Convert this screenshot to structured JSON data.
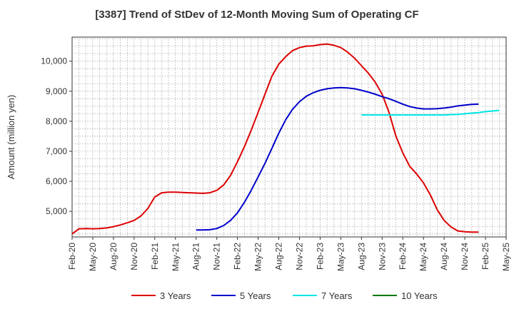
{
  "chart_data": {
    "type": "line",
    "title": "[3387]  Trend of StDev of 12-Month Moving Sum of Operating CF",
    "xlabel": "",
    "ylabel": "Amount (million yen)",
    "x_tick_labels": [
      "Feb-20",
      "May-20",
      "Aug-20",
      "Nov-20",
      "Feb-21",
      "May-21",
      "Aug-21",
      "Nov-21",
      "Feb-22",
      "May-22",
      "Aug-22",
      "Nov-22",
      "Feb-23",
      "May-23",
      "Aug-23",
      "Nov-23",
      "Feb-24",
      "May-24",
      "Aug-24",
      "Nov-24",
      "Feb-25",
      "May-25"
    ],
    "y_ticks": [
      5000,
      6000,
      7000,
      8000,
      9000,
      10000
    ],
    "y_tick_labels": [
      "5,000",
      "6,000",
      "7,000",
      "8,000",
      "9,000",
      "10,000"
    ],
    "ylim": [
      4150,
      10800
    ],
    "x_range_months": [
      0,
      63
    ],
    "grid": true,
    "legend_position": "bottom",
    "series": [
      {
        "name": "3 Years",
        "color": "#dd0000",
        "start_month": 0,
        "values": [
          4250,
          4420,
          4430,
          4420,
          4430,
          4450,
          4490,
          4550,
          4620,
          4700,
          4850,
          5100,
          5480,
          5620,
          5640,
          5640,
          5630,
          5620,
          5610,
          5600,
          5620,
          5700,
          5880,
          6200,
          6650,
          7150,
          7700,
          8300,
          8900,
          9500,
          9900,
          10150,
          10350,
          10450,
          10500,
          10510,
          10550,
          10570,
          10530,
          10450,
          10300,
          10100,
          9850,
          9600,
          9300,
          8900,
          8300,
          7500,
          6950,
          6500,
          6250,
          5950,
          5550,
          5050,
          4700,
          4480,
          4350,
          4320,
          4310,
          4310
        ]
      },
      {
        "name": "5 Years",
        "color": "#0000cc",
        "start_month": 18,
        "values": [
          4380,
          4380,
          4390,
          4430,
          4530,
          4700,
          4950,
          5300,
          5700,
          6150,
          6600,
          7100,
          7600,
          8050,
          8400,
          8650,
          8830,
          8950,
          9030,
          9080,
          9110,
          9120,
          9110,
          9080,
          9030,
          8970,
          8900,
          8820,
          8750,
          8660,
          8570,
          8490,
          8440,
          8410,
          8410,
          8420,
          8440,
          8470,
          8510,
          8540,
          8560,
          8570
        ]
      },
      {
        "name": "7 Years",
        "color": "#00e5e5",
        "start_month": 42,
        "values": [
          8210,
          8210,
          8210,
          8210,
          8210,
          8210,
          8210,
          8210,
          8210,
          8210,
          8210,
          8210,
          8210,
          8220,
          8230,
          8250,
          8270,
          8290,
          8320,
          8340,
          8360
        ]
      },
      {
        "name": "10 Years",
        "color": "#007700",
        "start_month": null,
        "values": []
      }
    ]
  }
}
